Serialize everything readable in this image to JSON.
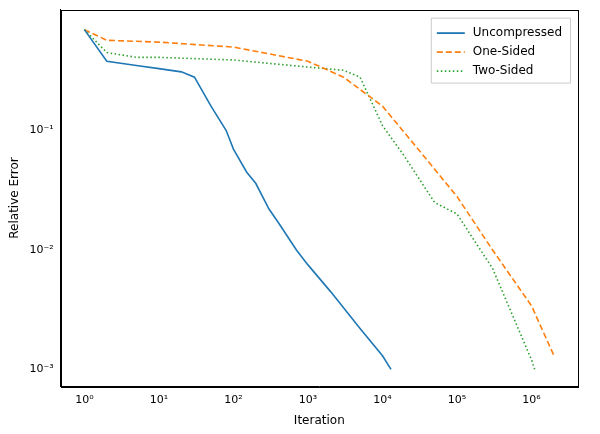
{
  "chart_data": {
    "type": "line",
    "x_label": "Iteration",
    "y_label": "Relative Error",
    "log": true,
    "grid": false,
    "legend": "upper right",
    "xlim": [
      0.48,
      4200000
    ],
    "ylim": [
      0.00072,
      1.03
    ],
    "xticks": [
      {
        "value": 1,
        "label": "10⁰"
      },
      {
        "value": 10,
        "label": "10¹"
      },
      {
        "value": 100,
        "label": "10²"
      },
      {
        "value": 1000,
        "label": "10³"
      },
      {
        "value": 10000,
        "label": "10⁴"
      },
      {
        "value": 100000,
        "label": "10⁵"
      },
      {
        "value": 1000000,
        "label": "10⁶"
      }
    ],
    "yticks": [
      {
        "value": 0.001,
        "label": "10⁻³"
      },
      {
        "value": 0.01,
        "label": "10⁻²"
      },
      {
        "value": 0.1,
        "label": "10⁻¹"
      }
    ],
    "series": [
      {
        "name": "Uncompressed",
        "color": "#1f77b4",
        "line_style": "solid",
        "x": [
          1,
          2,
          5,
          10,
          20,
          30,
          50,
          80,
          100,
          150,
          200,
          300,
          400,
          700,
          1000,
          2000,
          5000,
          10000,
          13000
        ],
        "values": [
          0.7,
          0.38,
          0.35,
          0.33,
          0.31,
          0.28,
          0.16,
          0.1,
          0.07,
          0.045,
          0.036,
          0.022,
          0.017,
          0.01,
          0.0075,
          0.0045,
          0.0022,
          0.0013,
          0.001
        ]
      },
      {
        "name": "One-Sided",
        "color": "#ff7f0e",
        "line_style": "dashed",
        "x": [
          1,
          2,
          10,
          100,
          1000,
          1500,
          3000,
          10000,
          30000,
          100000,
          300000,
          1000000,
          2000000
        ],
        "values": [
          0.7,
          0.57,
          0.55,
          0.5,
          0.38,
          0.34,
          0.28,
          0.16,
          0.07,
          0.028,
          0.01,
          0.0034,
          0.0013
        ]
      },
      {
        "name": "Two-Sided",
        "color": "#2ca02c",
        "line_style": "dotted",
        "x": [
          1,
          2,
          5,
          10,
          100,
          1000,
          3000,
          5000,
          10000,
          20000,
          50000,
          100000,
          300000,
          1000000,
          1100000
        ],
        "values": [
          0.7,
          0.45,
          0.41,
          0.41,
          0.39,
          0.34,
          0.32,
          0.28,
          0.11,
          0.06,
          0.025,
          0.02,
          0.007,
          0.0012,
          0.001
        ]
      }
    ]
  }
}
